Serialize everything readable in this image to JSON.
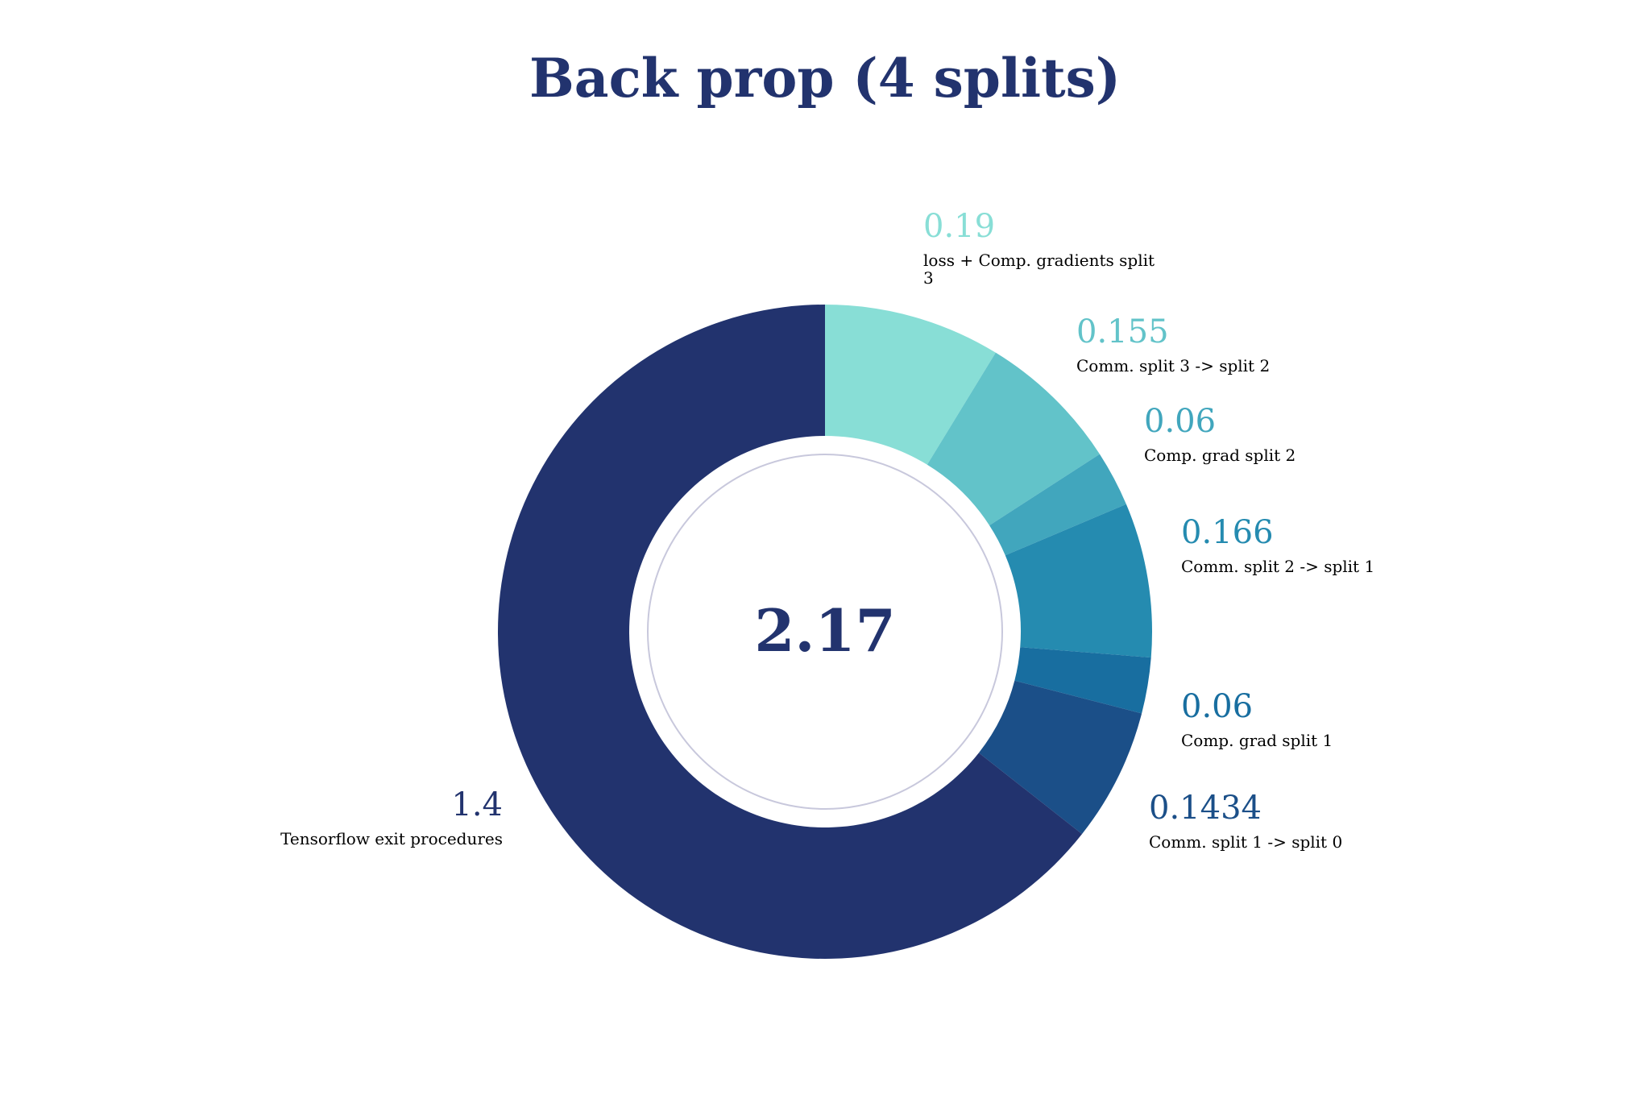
{
  "chart_data": {
    "type": "pie",
    "title": "Back prop (4 splits)",
    "center_label": "2.17",
    "slices": [
      {
        "name": "loss + Comp. gradients split 3",
        "value_label": "0.19",
        "value": 0.19,
        "color": "#88ded6"
      },
      {
        "name": "Comm. split 3 -> split 2",
        "value_label": "0.155",
        "value": 0.155,
        "color": "#62c3c9"
      },
      {
        "name": "Comp. grad split 2",
        "value_label": "0.06",
        "value": 0.06,
        "color": "#41a6bd"
      },
      {
        "name": "Comm. split 2 -> split 1",
        "value_label": "0.166",
        "value": 0.166,
        "color": "#258bb0"
      },
      {
        "name": "Comp. grad split 1",
        "value_label": "0.06",
        "value": 0.06,
        "color": "#186ea0"
      },
      {
        "name": "Comm. split 1 -> split 0",
        "value_label": "0.1434",
        "value": 0.1434,
        "color": "#1b4f88"
      },
      {
        "name": "Tensorflow exit procedures",
        "value_label": "1.4",
        "value": 1.4,
        "color": "#22336e"
      }
    ],
    "title_color": "#22336e",
    "center_color": "#22336e",
    "inner_ring_color": "#c8c8dc"
  }
}
